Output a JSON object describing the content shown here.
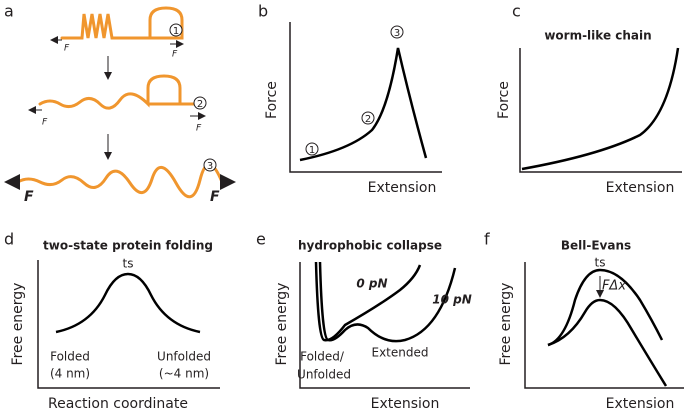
{
  "panels": [
    {
      "label": "a",
      "markers": [
        "1",
        "2",
        "3"
      ],
      "force_labels": [
        "F",
        "F",
        "F",
        "F",
        "F",
        "F"
      ]
    },
    {
      "label": "b",
      "y_axis": "Force",
      "x_axis": "Extension",
      "markers": [
        "1",
        "2",
        "3"
      ]
    },
    {
      "label": "c",
      "title": "worm-like chain",
      "y_axis": "Force",
      "x_axis": "Extension"
    },
    {
      "label": "d",
      "title": "two-state protein folding",
      "y_axis": "Free energy",
      "x_axis": "Reaction coordinate",
      "annotations": [
        "ts",
        "Folded",
        "(4 nm)",
        "Unfolded",
        "(~4 nm)"
      ]
    },
    {
      "label": "e",
      "title": "hydrophobic collapse",
      "y_axis": "Free energy",
      "x_axis": "Extension",
      "annotations": [
        "0 pN",
        "10 pN",
        "Folded/",
        "Unfolded",
        "Extended"
      ]
    },
    {
      "label": "f",
      "title": "Bell-Evans",
      "y_axis": "Free energy",
      "x_axis": "Extension",
      "annotations": [
        "ts",
        "FΔx"
      ]
    }
  ]
}
